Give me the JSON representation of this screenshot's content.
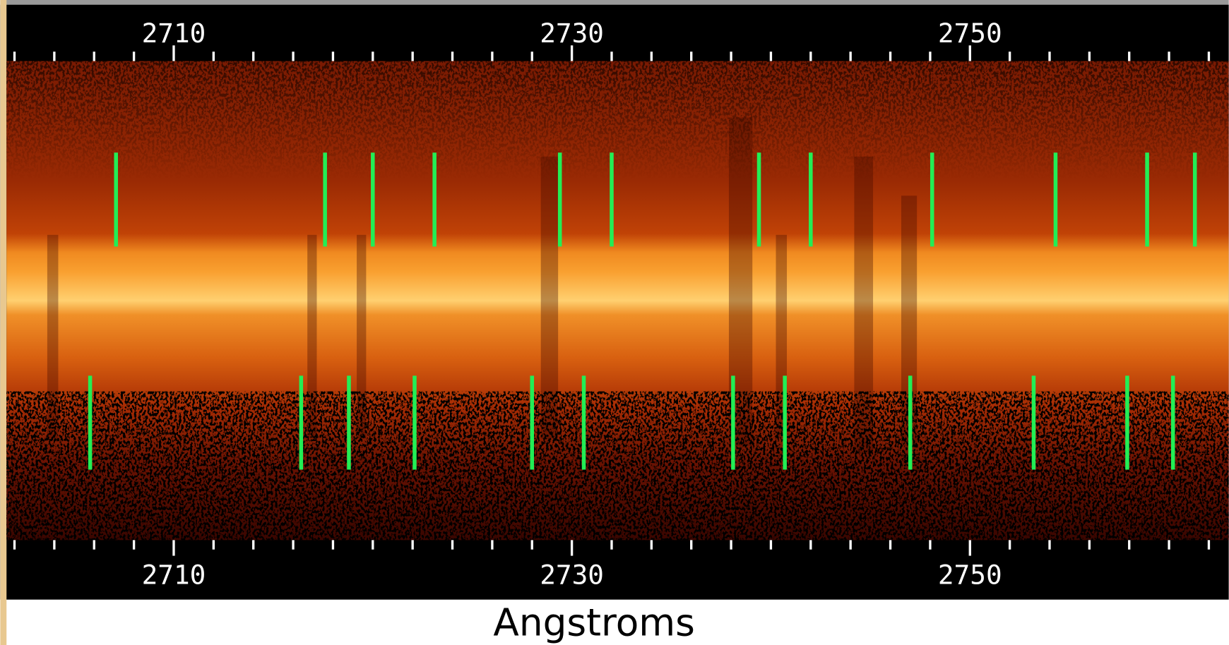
{
  "chart_data": {
    "type": "spectrum",
    "xlabel": "Angstroms",
    "xlim": [
      2701.6,
      2763.0
    ],
    "xticks": [
      2710,
      2730,
      2750
    ],
    "xminorticks": [
      2702,
      2704,
      2706,
      2708,
      2712,
      2714,
      2716,
      2718,
      2720,
      2722,
      2724,
      2726,
      2728,
      2732,
      2734,
      2736,
      2738,
      2740,
      2742,
      2744,
      2746,
      2748,
      2752,
      2754,
      2756,
      2758,
      2760,
      2762
    ],
    "marker_color": "#22ee55",
    "markers": [
      {
        "values": [
          2707.1,
          2717.6,
          2720.0,
          2723.1,
          2729.4,
          2732.0,
          2739.4,
          2742.0,
          2748.1,
          2754.3,
          2758.9,
          2761.3
        ]
      },
      {
        "values": [
          2705.8,
          2716.4,
          2718.8,
          2722.1,
          2728.0,
          2730.6,
          2738.1,
          2740.7,
          2747.0,
          2753.2,
          2757.9,
          2760.2
        ]
      }
    ]
  }
}
